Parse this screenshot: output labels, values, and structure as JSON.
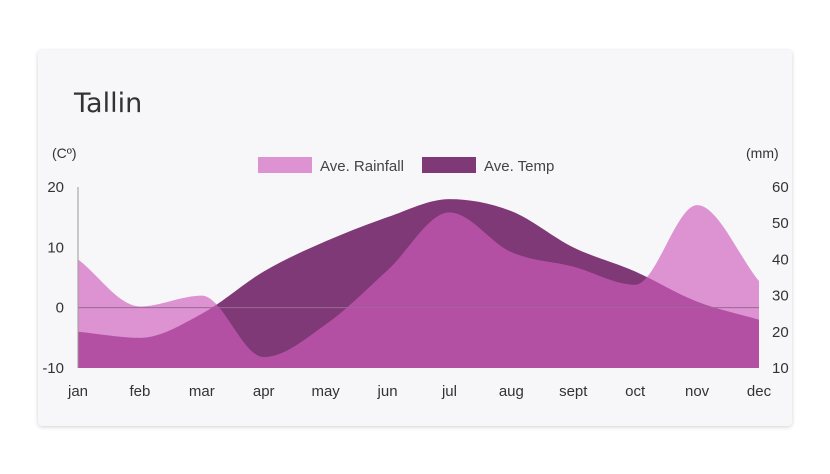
{
  "title": "Tallin",
  "colors": {
    "rainfall": "#cf5cbd",
    "temp": "#6b1760",
    "axis": "#999999",
    "zero_line": "#9a6a95"
  },
  "chart_data": {
    "type": "area",
    "title": "Tallin",
    "categories": [
      "jan",
      "feb",
      "mar",
      "apr",
      "may",
      "jun",
      "jul",
      "aug",
      "sept",
      "oct",
      "nov",
      "dec"
    ],
    "series": [
      {
        "name": "Ave. Rainfall",
        "axis": "right",
        "values": [
          40,
          27,
          30,
          13,
          22,
          37,
          53,
          42,
          38,
          33,
          55,
          34
        ]
      },
      {
        "name": "Ave. Temp",
        "axis": "left",
        "values": [
          -4,
          -5,
          -1,
          6,
          11,
          15,
          18,
          16,
          10,
          6,
          1,
          -2
        ]
      }
    ],
    "left_axis": {
      "label": "(Cº)",
      "ticks": [
        20,
        10,
        0,
        -10
      ],
      "ylim": [
        -10,
        20
      ]
    },
    "right_axis": {
      "label": "(mm)",
      "ticks": [
        60,
        50,
        40,
        30,
        20,
        10
      ],
      "ylim": [
        10,
        60
      ]
    },
    "legend_placement": "top-center",
    "grid": false
  }
}
